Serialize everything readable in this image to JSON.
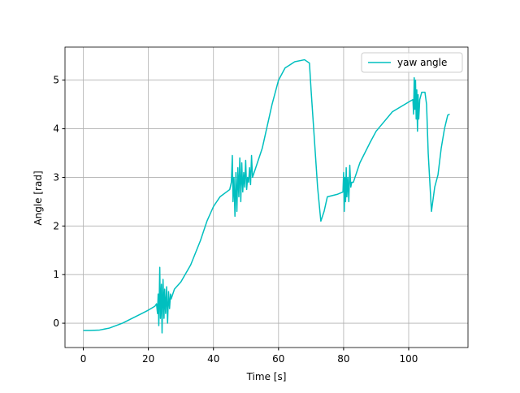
{
  "chart_data": {
    "type": "line",
    "xlabel": "Time [s]",
    "ylabel": "Angle [rad]",
    "x": [
      0,
      2,
      5,
      8,
      10,
      12,
      15,
      18,
      20,
      22,
      22.5,
      22.8,
      23.0,
      23.2,
      23.5,
      23.7,
      24.0,
      24.2,
      24.5,
      24.8,
      25.0,
      25.3,
      25.6,
      25.9,
      26.2,
      26.5,
      26.8,
      27.0,
      28,
      30,
      33,
      36,
      38,
      40,
      42,
      45,
      45.5,
      45.8,
      46.0,
      46.3,
      46.6,
      46.9,
      47.2,
      47.5,
      47.8,
      48.1,
      48.4,
      48.7,
      49.0,
      49.3,
      49.6,
      49.9,
      50.2,
      50.5,
      50.8,
      51.1,
      51.4,
      51.7,
      52.0,
      55,
      58,
      60,
      62,
      65,
      68,
      69.5,
      70,
      71,
      72,
      73,
      74,
      75,
      78,
      79.8,
      80.0,
      80.2,
      80.4,
      80.6,
      80.8,
      81.0,
      81.3,
      81.6,
      81.9,
      82.2,
      82.5,
      83,
      85,
      88,
      90,
      95,
      100,
      101.3,
      101.5,
      101.7,
      101.9,
      102.1,
      102.3,
      102.5,
      102.7,
      102.9,
      103.1,
      103.4,
      104,
      105,
      105.5,
      106,
      107,
      108,
      109,
      110,
      111,
      112,
      112.6
    ],
    "series": [
      {
        "name": "yaw angle",
        "color": "#00bfbf",
        "values": [
          -0.15,
          -0.15,
          -0.14,
          -0.1,
          -0.05,
          0.0,
          0.1,
          0.2,
          0.27,
          0.35,
          0.4,
          0.2,
          0.6,
          -0.05,
          1.15,
          0.1,
          0.8,
          -0.2,
          0.9,
          0.1,
          0.7,
          0.2,
          0.75,
          0.0,
          0.65,
          0.3,
          0.6,
          0.5,
          0.7,
          0.85,
          1.2,
          1.7,
          2.1,
          2.4,
          2.6,
          2.75,
          2.9,
          3.45,
          2.5,
          3.0,
          2.2,
          3.1,
          2.3,
          3.2,
          2.6,
          3.4,
          2.5,
          3.3,
          2.7,
          3.1,
          2.8,
          3.35,
          2.75,
          3.0,
          2.9,
          3.2,
          2.85,
          3.45,
          3.0,
          3.6,
          4.5,
          5.0,
          5.25,
          5.38,
          5.42,
          5.35,
          4.8,
          3.8,
          2.8,
          2.1,
          2.3,
          2.6,
          2.65,
          2.7,
          3.1,
          2.3,
          3.0,
          2.5,
          3.2,
          2.6,
          3.0,
          2.5,
          3.25,
          2.8,
          2.9,
          2.9,
          3.3,
          3.7,
          3.95,
          4.35,
          4.55,
          4.6,
          4.3,
          5.05,
          4.4,
          5.0,
          4.2,
          4.8,
          3.95,
          4.7,
          4.2,
          4.6,
          4.75,
          4.75,
          4.5,
          3.5,
          2.3,
          2.8,
          3.05,
          3.6,
          4.0,
          4.28,
          4.3
        ]
      }
    ],
    "xlim": [
      -5.63,
      118.23
    ],
    "ylim": [
      -0.5,
      5.68
    ],
    "xticks": [
      0,
      20,
      40,
      60,
      80,
      100
    ],
    "yticks": [
      0,
      1,
      2,
      3,
      4,
      5
    ],
    "grid": true,
    "legend": "upper right"
  }
}
